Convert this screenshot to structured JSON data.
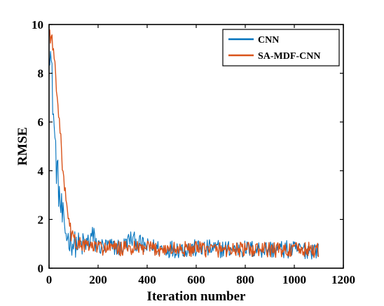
{
  "chart_data": {
    "type": "line",
    "xlabel": "Iteration number",
    "ylabel": "RMSE",
    "xlim": [
      0,
      1200
    ],
    "ylim": [
      0,
      10
    ],
    "xticks": [
      0,
      200,
      400,
      600,
      800,
      1000,
      1200
    ],
    "yticks": [
      0,
      2,
      4,
      6,
      8,
      10
    ],
    "grid": false,
    "legend_position": "top-right",
    "series": [
      {
        "name": "CNN",
        "color": "#0072BD",
        "points": [
          [
            0,
            9.5
          ],
          [
            5,
            9.0
          ],
          [
            10,
            8.1
          ],
          [
            15,
            7.0
          ],
          [
            20,
            5.9
          ],
          [
            25,
            5.0
          ],
          [
            30,
            4.3
          ],
          [
            35,
            3.7
          ],
          [
            40,
            3.2
          ],
          [
            45,
            2.7
          ],
          [
            50,
            2.3
          ],
          [
            55,
            2.0
          ],
          [
            60,
            1.7
          ],
          [
            70,
            1.4
          ],
          [
            80,
            1.2
          ],
          [
            90,
            1.1
          ],
          [
            100,
            1.0
          ],
          [
            120,
            0.95
          ],
          [
            150,
            0.95
          ],
          [
            175,
            1.3
          ],
          [
            200,
            0.9
          ],
          [
            300,
            0.85
          ],
          [
            330,
            1.2
          ],
          [
            400,
            0.85
          ],
          [
            500,
            0.8
          ],
          [
            600,
            0.8
          ],
          [
            700,
            0.8
          ],
          [
            800,
            0.78
          ],
          [
            900,
            0.78
          ],
          [
            1000,
            0.75
          ],
          [
            1100,
            0.75
          ]
        ]
      },
      {
        "name": "SA-MDF-CNN",
        "color": "#D95319",
        "points": [
          [
            0,
            9.8
          ],
          [
            5,
            9.6
          ],
          [
            10,
            9.4
          ],
          [
            15,
            9.1
          ],
          [
            20,
            8.7
          ],
          [
            25,
            8.2
          ],
          [
            30,
            7.6
          ],
          [
            35,
            7.0
          ],
          [
            40,
            6.3
          ],
          [
            45,
            5.6
          ],
          [
            50,
            4.9
          ],
          [
            55,
            4.2
          ],
          [
            60,
            3.6
          ],
          [
            65,
            3.1
          ],
          [
            70,
            2.6
          ],
          [
            75,
            2.2
          ],
          [
            80,
            1.9
          ],
          [
            85,
            1.6
          ],
          [
            90,
            1.4
          ],
          [
            100,
            1.2
          ],
          [
            110,
            1.05
          ],
          [
            120,
            1.0
          ],
          [
            150,
            0.9
          ],
          [
            200,
            0.85
          ],
          [
            300,
            0.8
          ],
          [
            400,
            0.8
          ],
          [
            500,
            0.78
          ],
          [
            600,
            0.78
          ],
          [
            700,
            0.77
          ],
          [
            800,
            0.76
          ],
          [
            900,
            0.75
          ],
          [
            1000,
            0.75
          ],
          [
            1100,
            0.75
          ]
        ]
      }
    ]
  }
}
